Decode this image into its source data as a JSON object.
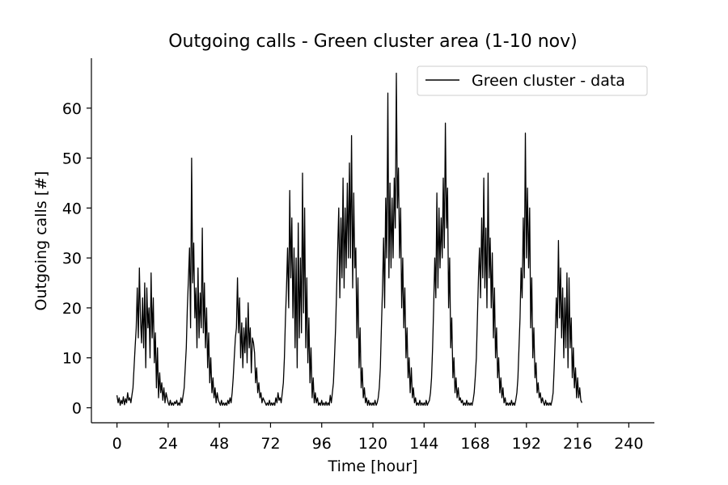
{
  "chart_data": {
    "type": "line",
    "title": "Outgoing calls - Green cluster area (1-10 nov)",
    "xlabel": "Time [hour]",
    "ylabel": "Outgoing calls [#]",
    "xlim": [
      -12,
      252
    ],
    "ylim": [
      -3,
      70
    ],
    "xticks": [
      0,
      24,
      48,
      72,
      96,
      120,
      144,
      168,
      192,
      216,
      240
    ],
    "yticks": [
      0,
      10,
      20,
      30,
      40,
      50,
      60
    ],
    "xtick_labels": [
      "0",
      "24",
      "48",
      "72",
      "96",
      "120",
      "144",
      "168",
      "192",
      "216",
      "240"
    ],
    "ytick_labels": [
      "0",
      "10",
      "20",
      "30",
      "40",
      "50",
      "60"
    ],
    "legend_position": "top-right",
    "grid": false,
    "series": [
      {
        "name": "Green cluster - data",
        "color": "#000000",
        "x_start": 0,
        "x_step": 0.5,
        "values": [
          2.5,
          1.0,
          2.0,
          0.5,
          1.5,
          0.8,
          2.2,
          0.6,
          1.8,
          1.0,
          3.0,
          1.5,
          2.0,
          1.0,
          2.5,
          4.0,
          8.0,
          12.0,
          16.0,
          24.0,
          14.0,
          28.0,
          18.0,
          13.0,
          22.0,
          12.0,
          25.0,
          8.0,
          24.0,
          16.0,
          20.0,
          10.0,
          27.0,
          14.0,
          22.0,
          9.0,
          15.0,
          4.0,
          12.0,
          2.0,
          7.0,
          3.0,
          5.0,
          1.5,
          4.0,
          1.0,
          3.0,
          2.0,
          1.0,
          0.5,
          1.5,
          0.5,
          1.0,
          0.5,
          1.2,
          0.8,
          1.5,
          0.5,
          1.0,
          0.5,
          2.0,
          1.0,
          2.5,
          4.0,
          8.0,
          12.0,
          20.0,
          26.0,
          32.0,
          16.0,
          50.0,
          25.0,
          33.0,
          18.0,
          24.0,
          12.0,
          28.0,
          14.0,
          23.0,
          16.0,
          36.0,
          15.0,
          25.0,
          12.0,
          20.0,
          8.0,
          15.0,
          5.0,
          10.0,
          3.0,
          6.0,
          2.0,
          4.0,
          1.0,
          3.0,
          1.5,
          1.0,
          0.5,
          1.5,
          0.5,
          1.0,
          0.5,
          1.0,
          0.5,
          1.5,
          0.8,
          2.0,
          1.0,
          3.0,
          6.0,
          10.0,
          14.0,
          16.0,
          26.0,
          15.0,
          22.0,
          10.0,
          17.0,
          8.0,
          16.0,
          11.0,
          18.0,
          9.0,
          21.0,
          12.0,
          16.0,
          7.0,
          14.0,
          13.0,
          11.0,
          5.0,
          8.0,
          3.0,
          5.0,
          2.0,
          3.0,
          1.0,
          2.0,
          1.5,
          1.0,
          0.5,
          1.0,
          0.5,
          1.5,
          0.5,
          1.0,
          0.5,
          1.0,
          0.5,
          2.0,
          1.0,
          3.0,
          1.5,
          2.0,
          1.0,
          3.0,
          5.0,
          10.0,
          18.0,
          24.0,
          32.0,
          20.0,
          43.5,
          26.0,
          38.0,
          18.0,
          32.0,
          12.0,
          30.0,
          8.0,
          37.0,
          14.0,
          30.0,
          15.0,
          47.0,
          19.0,
          40.0,
          12.0,
          26.0,
          9.0,
          18.0,
          5.0,
          12.0,
          2.0,
          6.0,
          1.0,
          3.0,
          1.0,
          2.0,
          0.5,
          1.0,
          0.5,
          1.5,
          0.5,
          1.0,
          0.5,
          1.2,
          0.5,
          1.0,
          0.5,
          2.5,
          1.0,
          3.0,
          5.0,
          10.0,
          16.0,
          24.0,
          32.0,
          40.0,
          22.0,
          38.0,
          26.0,
          46.0,
          24.0,
          40.0,
          28.0,
          45.0,
          30.0,
          49.0,
          30.0,
          54.5,
          24.0,
          43.0,
          28.0,
          32.0,
          14.0,
          26.0,
          8.0,
          16.0,
          4.0,
          8.0,
          2.0,
          4.0,
          1.0,
          2.0,
          0.5,
          1.5,
          0.5,
          1.0,
          0.5,
          1.0,
          0.5,
          1.5,
          0.5,
          1.0,
          2.0,
          4.0,
          8.0,
          16.0,
          24.0,
          34.0,
          20.0,
          42.0,
          30.0,
          63.0,
          26.0,
          45.0,
          28.0,
          42.0,
          30.0,
          46.0,
          36.0,
          67.0,
          40.0,
          48.0,
          30.0,
          40.0,
          20.0,
          30.0,
          16.0,
          24.0,
          10.0,
          16.0,
          6.0,
          10.0,
          3.0,
          8.0,
          2.0,
          4.0,
          1.0,
          2.0,
          0.5,
          1.0,
          0.5,
          1.5,
          0.5,
          1.0,
          0.5,
          1.0,
          0.5,
          1.5,
          0.5,
          1.0,
          1.5,
          3.0,
          6.0,
          12.0,
          20.0,
          30.0,
          22.0,
          43.0,
          24.0,
          40.0,
          28.0,
          38.0,
          30.0,
          46.0,
          32.0,
          57.0,
          36.0,
          44.0,
          20.0,
          30.0,
          12.0,
          18.0,
          6.0,
          10.0,
          3.0,
          6.0,
          2.0,
          4.0,
          1.5,
          2.0,
          1.0,
          1.5,
          0.5,
          1.0,
          0.5,
          1.5,
          0.5,
          1.0,
          0.5,
          1.0,
          0.5,
          1.5,
          3.0,
          6.0,
          10.0,
          18.0,
          26.0,
          32.0,
          22.0,
          38.0,
          26.0,
          46.0,
          24.0,
          36.0,
          20.0,
          47.0,
          26.0,
          34.0,
          20.0,
          31.0,
          14.0,
          24.0,
          10.0,
          16.0,
          6.0,
          10.0,
          3.0,
          6.0,
          2.0,
          4.0,
          1.0,
          2.0,
          0.5,
          1.0,
          0.5,
          1.0,
          0.5,
          1.5,
          0.5,
          1.0,
          0.5,
          1.5,
          3.0,
          6.0,
          12.0,
          18.0,
          28.0,
          22.0,
          38.0,
          26.0,
          55.0,
          30.0,
          44.0,
          28.0,
          40.0,
          16.0,
          26.0,
          10.0,
          16.0,
          6.0,
          9.0,
          3.0,
          5.0,
          2.0,
          3.0,
          1.0,
          2.0,
          1.0,
          0.5,
          1.5,
          0.5,
          1.0,
          0.5,
          1.0,
          0.5,
          1.5,
          3.0,
          8.0,
          14.0,
          22.0,
          16.0,
          33.5,
          18.0,
          28.0,
          14.0,
          24.0,
          10.0,
          22.0,
          12.0,
          27.0,
          8.0,
          26.0,
          12.0,
          18.0,
          6.0,
          12.0,
          4.0,
          8.0,
          2.0,
          6.0,
          2.0,
          4.0,
          1.5,
          1.0
        ]
      }
    ]
  }
}
